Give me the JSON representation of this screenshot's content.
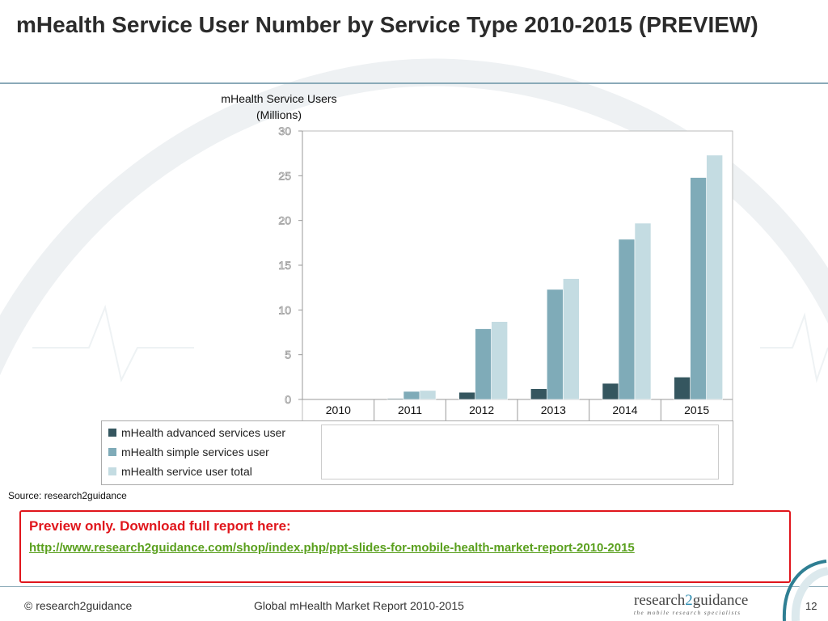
{
  "slide": {
    "title": "mHealth Service User Number by Service Type 2010-2015 (PREVIEW)",
    "source": "Source: research2guidance"
  },
  "preview": {
    "heading": "Preview only. Download full report here:",
    "link": "http://www.research2guidance.com/shop/index.php/ppt-slides-for-mobile-health-market-report-2010-2015"
  },
  "footer": {
    "copyright": "© research2guidance",
    "report": "Global mHealth Market Report 2010-2015",
    "logo_main_a": "research",
    "logo_main_b": "2",
    "logo_main_c": "guidance",
    "logo_tagline": "the mobile research specialists",
    "page": "12"
  },
  "chart_data": {
    "type": "bar",
    "title": "",
    "ylabel": "mHealth Service Users (Millions)",
    "xlabel": "",
    "categories": [
      "2010",
      "2011",
      "2012",
      "2013",
      "2014",
      "2015"
    ],
    "ylim": [
      0,
      30
    ],
    "yticks": [
      0,
      5,
      10,
      15,
      20,
      25,
      30
    ],
    "grid": false,
    "legend_position": "bottom-left",
    "series": [
      {
        "name": "mHealth advanced services user",
        "color": "#35565f",
        "values": [
          0,
          0.1,
          0.8,
          1.2,
          1.8,
          2.5
        ]
      },
      {
        "name": "mHealth simple services user",
        "color": "#7fabb8",
        "values": [
          0,
          0.9,
          7.9,
          12.3,
          17.9,
          24.8
        ]
      },
      {
        "name": "mHealth service user total",
        "color": "#c4dce2",
        "values": [
          0,
          1.0,
          8.7,
          13.5,
          19.7,
          27.3
        ]
      }
    ]
  }
}
